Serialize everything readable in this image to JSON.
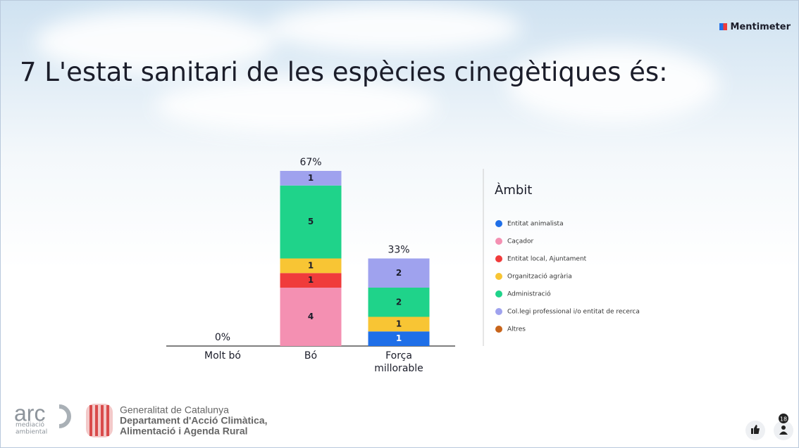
{
  "brand": "Mentimeter",
  "title": "7 L'estat sanitari de les espècies cinegètiques és:",
  "chart_data": {
    "type": "stacked_bar",
    "categories": [
      "Molt bó",
      "Bó",
      "Força millorable"
    ],
    "series": [
      {
        "name": "Entitat animalista",
        "color": "#1f6fe8",
        "values": [
          0,
          0,
          1
        ]
      },
      {
        "name": "Caçador",
        "color": "#f490b2",
        "values": [
          0,
          4,
          0
        ]
      },
      {
        "name": "Entitat local, Ajuntament",
        "color": "#f03b3b",
        "values": [
          0,
          1,
          0
        ]
      },
      {
        "name": "Organització agrària",
        "color": "#f8c534",
        "values": [
          0,
          1,
          1
        ]
      },
      {
        "name": "Administració",
        "color": "#1fd38a",
        "values": [
          0,
          5,
          2
        ]
      },
      {
        "name": "Col.legi professional i/o entitat de recerca",
        "color": "#9fa2ee",
        "values": [
          0,
          1,
          2
        ]
      },
      {
        "name": "Altres",
        "color": "#c8651b",
        "values": [
          0,
          0,
          0
        ]
      }
    ],
    "percentages": [
      0,
      67,
      33
    ],
    "percentage_labels": [
      "0%",
      "67%",
      "33%"
    ],
    "legend_title": "Àmbit"
  },
  "footer": {
    "arc": "arc",
    "arc_sub": [
      "mediació",
      "ambiental"
    ],
    "lines": [
      "Generalitat de Catalunya",
      "Departament d'Acció Climàtica,",
      "Alimentació i Agenda Rural"
    ]
  },
  "participants": 18
}
